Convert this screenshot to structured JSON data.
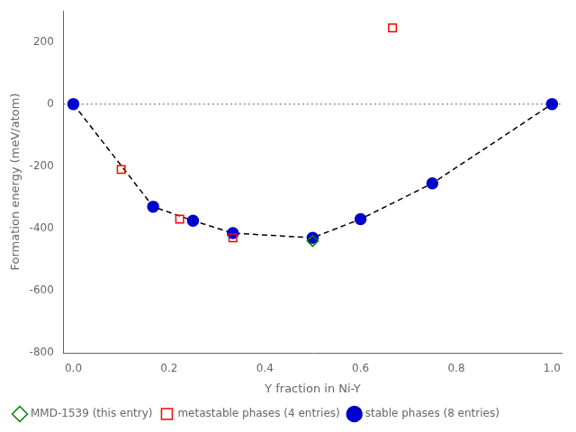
{
  "chart_data": {
    "type": "scatter",
    "xlabel": "Y fraction in Ni-Y",
    "ylabel": "Formation energy (meV/atom)",
    "xlim": [
      -0.02,
      1.02
    ],
    "ylim": [
      -800,
      300
    ],
    "xticks": [
      {
        "value": 0.0,
        "label": "0.0"
      },
      0.2,
      0.4,
      0.6,
      0.8,
      {
        "value": 1.0,
        "label": "1.0"
      }
    ],
    "yticks": [
      -800,
      -600,
      -400,
      -200,
      0,
      200
    ],
    "grid": false,
    "legend": "lower left",
    "reference_lines": [
      {
        "y": 0,
        "color": "gray",
        "line_style": "dotted"
      }
    ],
    "series": [
      {
        "type": "line",
        "line_style": "dashed",
        "color": "black",
        "x": [
          0.0,
          0.1667,
          0.25,
          0.3333,
          0.5,
          0.6,
          0.75,
          1.0
        ],
        "values": [
          0,
          -330,
          -375,
          -415,
          -430,
          -370,
          -255,
          0
        ]
      },
      {
        "name": "stable phases (8 entries)",
        "type": "scatter",
        "marker": "circle",
        "color": "#0000cc",
        "x": [
          0.0,
          0.1667,
          0.25,
          0.3333,
          0.5,
          0.6,
          0.75,
          1.0
        ],
        "values": [
          0,
          -330,
          -375,
          -415,
          -430,
          -370,
          -255,
          0
        ]
      },
      {
        "name": "metastable phases (4 entries)",
        "type": "scatter",
        "marker": "open_square",
        "color": "#ff0000",
        "x": [
          0.1,
          0.2222,
          0.3333,
          0.6667
        ],
        "values": [
          -210,
          -370,
          -430,
          245
        ]
      },
      {
        "name": "MMD-1539 (this entry)",
        "type": "scatter",
        "marker": "open_diamond",
        "color": "#008000",
        "x": [
          0.5
        ],
        "values": [
          -440
        ]
      }
    ]
  }
}
